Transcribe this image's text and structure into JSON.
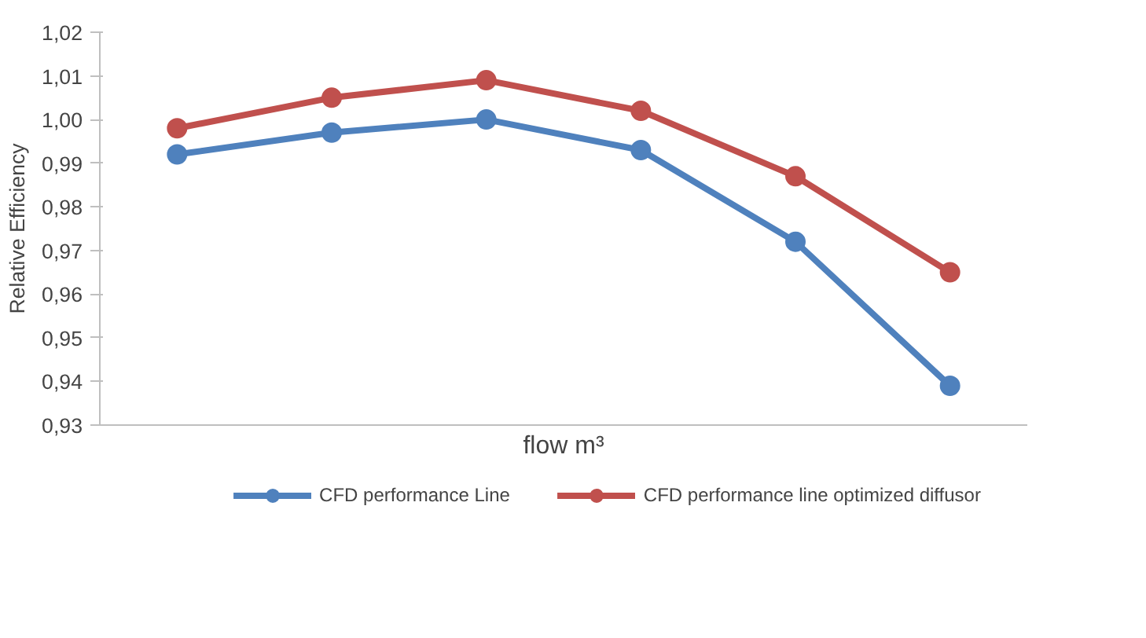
{
  "chart_data": {
    "type": "line",
    "xlabel": "flow m³",
    "ylabel": "Relative Efficiency",
    "categories": [
      null,
      null,
      null,
      null,
      null,
      null
    ],
    "series": [
      {
        "name": "CFD performance Line",
        "color": "#4f81bd",
        "values": [
          0.992,
          0.997,
          1.0,
          0.993,
          0.972,
          0.939
        ]
      },
      {
        "name": "CFD performance line optimized diffusor",
        "color": "#c0504d",
        "values": [
          0.998,
          1.005,
          1.009,
          1.002,
          0.987,
          0.965
        ]
      }
    ],
    "ylim": [
      0.93,
      1.02
    ],
    "yticks": [
      {
        "value": 0.93,
        "label": "0,93"
      },
      {
        "value": 0.94,
        "label": "0,94"
      },
      {
        "value": 0.95,
        "label": "0,95"
      },
      {
        "value": 0.96,
        "label": "0,96"
      },
      {
        "value": 0.97,
        "label": "0,97"
      },
      {
        "value": 0.98,
        "label": "0,98"
      },
      {
        "value": 0.99,
        "label": "0,99"
      },
      {
        "value": 1.0,
        "label": "1,00"
      },
      {
        "value": 1.01,
        "label": "1,01"
      },
      {
        "value": 1.02,
        "label": "1,02"
      }
    ],
    "grid": false,
    "legend": "bottom",
    "marker": "circle",
    "line_style": "solid"
  }
}
